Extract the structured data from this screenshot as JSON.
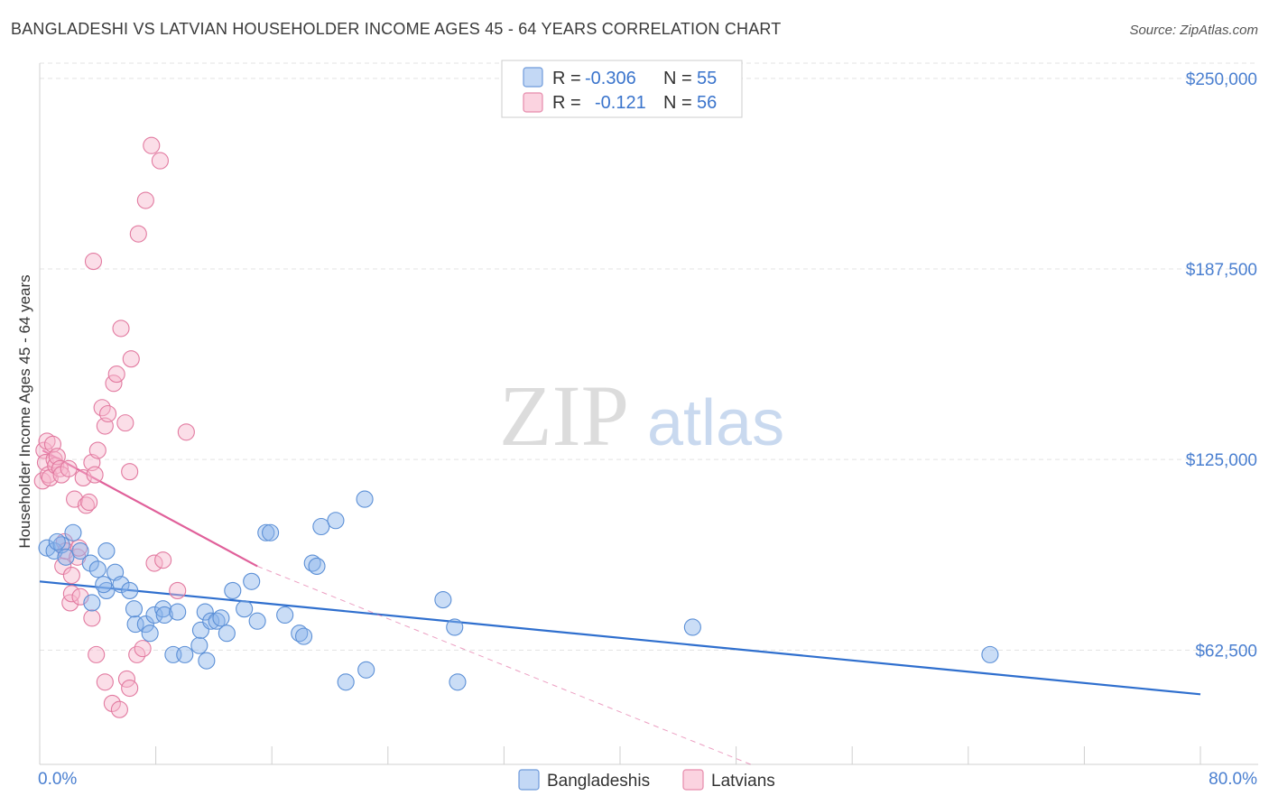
{
  "chart_data": {
    "type": "scatter",
    "title": "BANGLADESHI VS LATVIAN HOUSEHOLDER INCOME AGES 45 - 64 YEARS CORRELATION CHART",
    "source": "Source: ZipAtlas.com",
    "ylabel": "Householder Income Ages 45 - 64 years",
    "xlim": [
      0,
      80
    ],
    "ylim": [
      25000,
      255000
    ],
    "x_tick_labels": {
      "min": "0.0%",
      "max": "80.0%"
    },
    "y_ticks": [
      {
        "value": 62500,
        "label": "$62,500"
      },
      {
        "value": 125000,
        "label": "$125,000"
      },
      {
        "value": 187500,
        "label": "$187,500"
      },
      {
        "value": 250000,
        "label": "$250,000"
      }
    ],
    "x_minor_ticks": [
      0,
      8,
      16,
      24,
      32,
      40,
      48,
      56,
      64,
      72,
      80
    ],
    "watermark": {
      "zip": "ZIP",
      "atlas": "atlas"
    },
    "legend_box": {
      "rows": [
        {
          "r_label": "R =",
          "r_value": "-0.306",
          "n_label": "N =",
          "n_value": "55"
        },
        {
          "r_label": "R =",
          "r_value": "-0.121",
          "n_label": "N =",
          "n_value": "56"
        }
      ]
    },
    "series": [
      {
        "name": "Bangladeshis",
        "color": "#8ab4ec",
        "stroke": "#5b8fd6",
        "line_color": "#2f6fce",
        "trend": {
          "x0": 0,
          "y0": 85000,
          "x1": 80,
          "y1": 48000,
          "dashed_extension": false
        },
        "points": [
          [
            0.5,
            96000
          ],
          [
            1.0,
            95000
          ],
          [
            1.5,
            97000
          ],
          [
            1.8,
            93000
          ],
          [
            2.3,
            101000
          ],
          [
            2.8,
            95000
          ],
          [
            1.2,
            98000
          ],
          [
            3.5,
            91000
          ],
          [
            4.0,
            89000
          ],
          [
            4.6,
            95000
          ],
          [
            3.6,
            78000
          ],
          [
            4.6,
            82000
          ],
          [
            4.4,
            84000
          ],
          [
            5.2,
            88000
          ],
          [
            5.6,
            84000
          ],
          [
            6.2,
            82000
          ],
          [
            6.6,
            71000
          ],
          [
            6.5,
            76000
          ],
          [
            7.3,
            71000
          ],
          [
            7.6,
            68000
          ],
          [
            7.9,
            74000
          ],
          [
            8.5,
            76000
          ],
          [
            8.6,
            74000
          ],
          [
            9.2,
            61000
          ],
          [
            9.5,
            75000
          ],
          [
            10.0,
            61000
          ],
          [
            11.0,
            64000
          ],
          [
            11.1,
            69000
          ],
          [
            11.4,
            75000
          ],
          [
            11.8,
            72000
          ],
          [
            12.2,
            72000
          ],
          [
            12.5,
            73000
          ],
          [
            11.5,
            59000
          ],
          [
            12.9,
            68000
          ],
          [
            13.3,
            82000
          ],
          [
            14.1,
            76000
          ],
          [
            14.6,
            85000
          ],
          [
            15.0,
            72000
          ],
          [
            15.6,
            101000
          ],
          [
            15.9,
            101000
          ],
          [
            16.9,
            74000
          ],
          [
            17.9,
            68000
          ],
          [
            18.2,
            67000
          ],
          [
            18.8,
            91000
          ],
          [
            19.1,
            90000
          ],
          [
            19.4,
            103000
          ],
          [
            20.4,
            105000
          ],
          [
            21.1,
            52000
          ],
          [
            22.4,
            112000
          ],
          [
            22.5,
            56000
          ],
          [
            27.8,
            79000
          ],
          [
            28.6,
            70000
          ],
          [
            28.8,
            52000
          ],
          [
            45.0,
            70000
          ],
          [
            65.5,
            61000
          ]
        ]
      },
      {
        "name": "Latvians",
        "color": "#f6b5cc",
        "stroke": "#e27aa0",
        "line_color": "#e0609a",
        "trend": {
          "x0": 0.2,
          "y0": 128000,
          "x1": 15.0,
          "y1": 90000,
          "dashed_extension": true,
          "dash_x1": 49.0,
          "dash_y1": 25000
        },
        "points": [
          [
            0.2,
            118000
          ],
          [
            0.3,
            128000
          ],
          [
            0.4,
            124000
          ],
          [
            0.5,
            131000
          ],
          [
            0.6,
            120000
          ],
          [
            0.7,
            119000
          ],
          [
            0.9,
            130000
          ],
          [
            1.0,
            125000
          ],
          [
            1.1,
            123000
          ],
          [
            1.2,
            126000
          ],
          [
            1.4,
            122000
          ],
          [
            1.5,
            120000
          ],
          [
            1.6,
            90000
          ],
          [
            1.7,
            98000
          ],
          [
            1.8,
            95000
          ],
          [
            2.0,
            122000
          ],
          [
            2.1,
            78000
          ],
          [
            2.2,
            81000
          ],
          [
            2.4,
            112000
          ],
          [
            2.6,
            93000
          ],
          [
            2.7,
            96000
          ],
          [
            2.8,
            80000
          ],
          [
            3.0,
            119000
          ],
          [
            3.2,
            110000
          ],
          [
            3.4,
            111000
          ],
          [
            3.6,
            124000
          ],
          [
            3.8,
            120000
          ],
          [
            4.0,
            128000
          ],
          [
            4.3,
            142000
          ],
          [
            4.5,
            136000
          ],
          [
            4.7,
            140000
          ],
          [
            5.1,
            150000
          ],
          [
            5.3,
            153000
          ],
          [
            5.6,
            168000
          ],
          [
            5.9,
            137000
          ],
          [
            6.2,
            121000
          ],
          [
            6.3,
            158000
          ],
          [
            3.7,
            190000
          ],
          [
            6.8,
            199000
          ],
          [
            7.3,
            210000
          ],
          [
            7.7,
            228000
          ],
          [
            8.3,
            223000
          ],
          [
            2.2,
            87000
          ],
          [
            3.6,
            73000
          ],
          [
            3.9,
            61000
          ],
          [
            4.5,
            52000
          ],
          [
            5.0,
            45000
          ],
          [
            5.5,
            43000
          ],
          [
            6.0,
            53000
          ],
          [
            6.2,
            50000
          ],
          [
            6.7,
            61000
          ],
          [
            7.1,
            63000
          ],
          [
            7.9,
            91000
          ],
          [
            8.5,
            92000
          ],
          [
            9.5,
            82000
          ],
          [
            10.1,
            134000
          ]
        ]
      }
    ]
  }
}
